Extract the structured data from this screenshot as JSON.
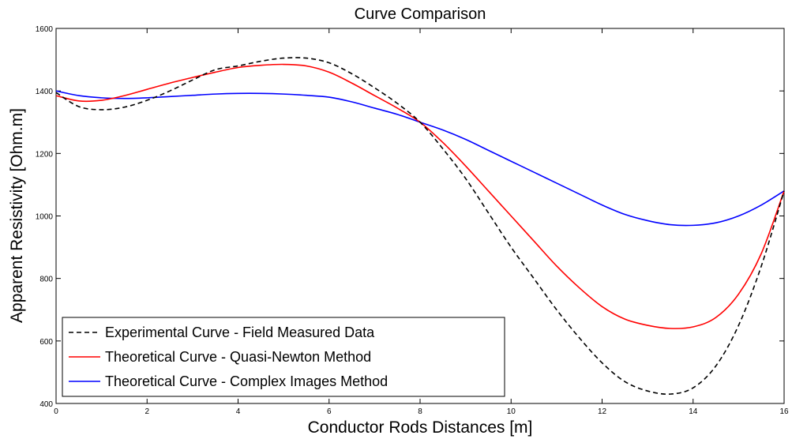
{
  "chart_data": {
    "type": "line",
    "title": "Curve Comparison",
    "xlabel": "Conductor Rods Distances [m]",
    "ylabel": "Apparent Resistivity [Ohm.m]",
    "xlim": [
      0,
      16
    ],
    "ylim": [
      400,
      1600
    ],
    "x_ticks": [
      "0",
      "2",
      "4",
      "6",
      "8",
      "10",
      "12",
      "14",
      "16"
    ],
    "y_ticks": [
      "400",
      "600",
      "800",
      "1000",
      "1200",
      "1400",
      "1600"
    ],
    "grid": false,
    "legend_position": "bottom-left",
    "series": [
      {
        "name": "Experimental Curve - Field Measured Data",
        "color": "#000000",
        "dash": "dashed",
        "x": [
          0,
          0.5,
          1,
          1.5,
          2,
          2.5,
          3,
          3.5,
          4,
          4.5,
          5,
          5.5,
          6,
          6.5,
          7,
          7.5,
          8,
          8.5,
          9,
          9.5,
          10,
          10.5,
          11,
          11.5,
          12,
          12.5,
          13,
          13.5,
          14,
          14.5,
          15,
          15.5,
          16
        ],
        "y": [
          1395,
          1350,
          1340,
          1348,
          1370,
          1400,
          1435,
          1468,
          1480,
          1495,
          1505,
          1505,
          1490,
          1455,
          1410,
          1360,
          1300,
          1215,
          1120,
          1010,
          900,
          800,
          700,
          610,
          530,
          470,
          440,
          430,
          450,
          520,
          650,
          840,
          1080
        ]
      },
      {
        "name": "Theoretical Curve - Quasi-Newton Method",
        "color": "#ff0000",
        "dash": "solid",
        "x": [
          0,
          0.5,
          1,
          1.5,
          2,
          2.5,
          3,
          3.5,
          4,
          4.5,
          5,
          5.5,
          6,
          6.5,
          7,
          7.5,
          8,
          8.5,
          9,
          9.5,
          10,
          10.5,
          11,
          11.5,
          12,
          12.5,
          13,
          13.5,
          14,
          14.5,
          15,
          15.5,
          16
        ],
        "y": [
          1385,
          1368,
          1370,
          1385,
          1405,
          1425,
          1443,
          1460,
          1475,
          1482,
          1485,
          1480,
          1460,
          1425,
          1385,
          1345,
          1300,
          1235,
          1160,
          1080,
          1000,
          920,
          840,
          770,
          710,
          670,
          650,
          640,
          645,
          675,
          750,
          880,
          1080
        ]
      },
      {
        "name": "Theoretical Curve - Complex Images Method",
        "color": "#0000ff",
        "dash": "solid",
        "x": [
          0,
          0.5,
          1,
          1.5,
          2,
          2.5,
          3,
          3.5,
          4,
          4.5,
          5,
          5.5,
          6,
          6.5,
          7,
          7.5,
          8,
          8.5,
          9,
          9.5,
          10,
          10.5,
          11,
          11.5,
          12,
          12.5,
          13,
          13.5,
          14,
          14.5,
          15,
          15.5,
          16
        ],
        "y": [
          1400,
          1385,
          1378,
          1376,
          1378,
          1382,
          1386,
          1390,
          1392,
          1392,
          1390,
          1386,
          1380,
          1365,
          1345,
          1325,
          1300,
          1275,
          1245,
          1210,
          1175,
          1140,
          1105,
          1070,
          1035,
          1005,
          985,
          972,
          970,
          978,
          1000,
          1035,
          1080
        ]
      }
    ]
  }
}
